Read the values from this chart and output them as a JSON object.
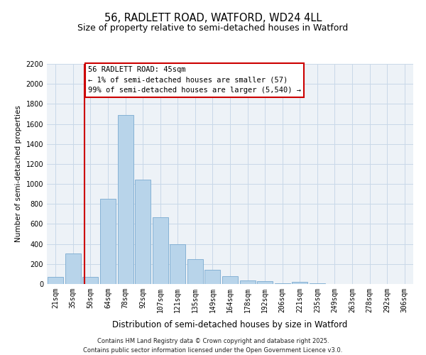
{
  "title": "56, RADLETT ROAD, WATFORD, WD24 4LL",
  "subtitle": "Size of property relative to semi-detached houses in Watford",
  "xlabel": "Distribution of semi-detached houses by size in Watford",
  "ylabel": "Number of semi-detached properties",
  "bar_labels": [
    "21sqm",
    "35sqm",
    "50sqm",
    "64sqm",
    "78sqm",
    "92sqm",
    "107sqm",
    "121sqm",
    "135sqm",
    "149sqm",
    "164sqm",
    "178sqm",
    "192sqm",
    "206sqm",
    "221sqm",
    "235sqm",
    "249sqm",
    "263sqm",
    "278sqm",
    "292sqm",
    "306sqm"
  ],
  "bar_values": [
    70,
    305,
    70,
    855,
    1690,
    1040,
    670,
    395,
    245,
    140,
    80,
    35,
    25,
    10,
    20,
    5,
    0,
    0,
    0,
    0,
    0
  ],
  "bar_color": "#b8d4ea",
  "bar_edge_color": "#7aaad0",
  "annotation_box_text": "56 RADLETT ROAD: 45sqm\n← 1% of semi-detached houses are smaller (57)\n99% of semi-detached houses are larger (5,540) →",
  "annotation_line_color": "#cc0000",
  "annotation_box_edge_color": "#cc0000",
  "ylim": [
    0,
    2200
  ],
  "yticks": [
    0,
    200,
    400,
    600,
    800,
    1000,
    1200,
    1400,
    1600,
    1800,
    2000,
    2200
  ],
  "grid_color": "#c8d8e8",
  "bg_color": "#edf2f7",
  "footnote": "Contains HM Land Registry data © Crown copyright and database right 2025.\nContains public sector information licensed under the Open Government Licence v3.0.",
  "title_fontsize": 10.5,
  "subtitle_fontsize": 9,
  "xlabel_fontsize": 8.5,
  "ylabel_fontsize": 7.5,
  "tick_fontsize": 7,
  "annotation_fontsize": 7.5,
  "footnote_fontsize": 6
}
